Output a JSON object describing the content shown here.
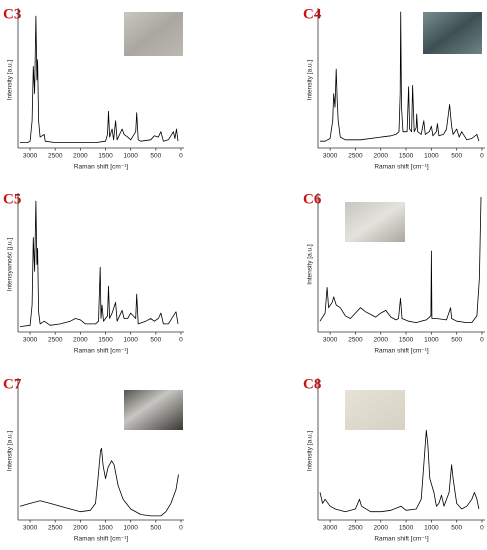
{
  "chart_data": [
    {
      "type": "line",
      "title": "C3",
      "x_label": "Raman shift [cm⁻¹]",
      "y_label": "Intensity [a.u.]",
      "color": "#000000",
      "xlim": [
        3240,
        -60
      ],
      "ylim": [
        0,
        100
      ],
      "xticks": [
        3000,
        2500,
        2000,
        1500,
        1000,
        500,
        0
      ],
      "x": [
        3200,
        3050,
        3000,
        2960,
        2935,
        2910,
        2885,
        2865,
        2850,
        2830,
        2800,
        2720,
        2700,
        2500,
        2000,
        1700,
        1500,
        1460,
        1440,
        1420,
        1370,
        1340,
        1300,
        1270,
        1170,
        1130,
        1060,
        1000,
        900,
        880,
        850,
        800,
        600,
        530,
        450,
        400,
        350,
        250,
        150,
        120,
        90,
        60
      ],
      "values": [
        4,
        4,
        5,
        20,
        60,
        40,
        97,
        50,
        65,
        20,
        8,
        10,
        5,
        4,
        4,
        4,
        5,
        10,
        27,
        8,
        14,
        6,
        20,
        6,
        14,
        10,
        8,
        6,
        12,
        26,
        6,
        5,
        6,
        9,
        8,
        12,
        5,
        6,
        12,
        7,
        14,
        5
      ]
    },
    {
      "type": "line",
      "title": "C4",
      "x_label": "Raman shift [cm⁻¹]",
      "y_label": "Intensity [a.u.]",
      "color": "#000000",
      "xlim": [
        3240,
        -60
      ],
      "ylim": [
        0,
        100
      ],
      "xticks": [
        3000,
        2500,
        2000,
        1500,
        1000,
        500,
        0
      ],
      "x": [
        3200,
        3100,
        3000,
        2950,
        2930,
        2905,
        2880,
        2860,
        2840,
        2800,
        2700,
        2400,
        2000,
        1800,
        1700,
        1640,
        1615,
        1605,
        1590,
        1560,
        1480,
        1450,
        1430,
        1390,
        1370,
        1340,
        1300,
        1290,
        1270,
        1200,
        1150,
        1120,
        1040,
        1000,
        970,
        900,
        880,
        850,
        760,
        700,
        640,
        600,
        570,
        500,
        450,
        400,
        300,
        200,
        100,
        60
      ],
      "values": [
        5,
        5,
        7,
        20,
        40,
        30,
        58,
        35,
        20,
        8,
        6,
        6,
        8,
        9,
        10,
        12,
        40,
        100,
        30,
        12,
        12,
        45,
        14,
        12,
        46,
        12,
        15,
        25,
        12,
        10,
        20,
        10,
        12,
        16,
        9,
        12,
        18,
        9,
        10,
        14,
        32,
        16,
        10,
        14,
        8,
        12,
        6,
        7,
        10,
        5
      ]
    },
    {
      "type": "line",
      "title": "C5",
      "x_label": "Raman shift [cm⁻¹]",
      "y_label": "Intensywność [j.u.]",
      "color": "#000000",
      "xlim": [
        3240,
        -60
      ],
      "ylim": [
        0,
        100
      ],
      "xticks": [
        3000,
        2500,
        2000,
        1500,
        1000,
        500,
        0
      ],
      "x": [
        3200,
        3000,
        2960,
        2935,
        2910,
        2885,
        2865,
        2850,
        2830,
        2800,
        2720,
        2600,
        2400,
        2200,
        2100,
        2000,
        1900,
        1700,
        1640,
        1605,
        1590,
        1570,
        1540,
        1460,
        1440,
        1420,
        1370,
        1300,
        1270,
        1170,
        1130,
        1060,
        1000,
        900,
        880,
        850,
        700,
        600,
        530,
        450,
        400,
        350,
        250,
        150,
        100,
        60
      ],
      "values": [
        4,
        5,
        20,
        70,
        45,
        97,
        50,
        62,
        15,
        6,
        8,
        5,
        6,
        8,
        10,
        9,
        6,
        6,
        8,
        48,
        10,
        20,
        8,
        12,
        34,
        10,
        14,
        22,
        8,
        16,
        10,
        10,
        14,
        10,
        28,
        6,
        8,
        10,
        8,
        10,
        14,
        6,
        6,
        12,
        15,
        6
      ]
    },
    {
      "type": "line",
      "title": "C6",
      "x_label": "Raman shift [cm⁻¹]",
      "y_label": "Intensity [a.u.]",
      "color": "#000000",
      "xlim": [
        3240,
        -60
      ],
      "ylim": [
        0,
        100
      ],
      "xticks": [
        3000,
        2500,
        2000,
        1500,
        1000,
        500,
        0
      ],
      "x": [
        3200,
        3100,
        3060,
        3030,
        2960,
        2930,
        2880,
        2800,
        2700,
        2600,
        2500,
        2400,
        2300,
        2200,
        2100,
        2000,
        1900,
        1800,
        1700,
        1650,
        1610,
        1580,
        1450,
        1300,
        1200,
        1100,
        1010,
        1000,
        990,
        900,
        700,
        620,
        600,
        500,
        300,
        200,
        100,
        50,
        20
      ],
      "values": [
        8,
        14,
        33,
        18,
        22,
        26,
        20,
        18,
        12,
        10,
        14,
        18,
        15,
        13,
        11,
        14,
        16,
        11,
        9,
        10,
        25,
        10,
        8,
        7,
        8,
        9,
        12,
        60,
        10,
        10,
        9,
        18,
        10,
        8,
        7,
        7,
        12,
        40,
        100
      ]
    },
    {
      "type": "line",
      "title": "C7",
      "x_label": "Raman shift [cm⁻¹]",
      "y_label": "Intensity [a.u.]",
      "color": "#000000",
      "xlim": [
        3240,
        -60
      ],
      "ylim": [
        0,
        100
      ],
      "xticks": [
        3000,
        2500,
        2000,
        1500,
        1000,
        500,
        0
      ],
      "x": [
        3200,
        3000,
        2800,
        2600,
        2400,
        2200,
        2000,
        1800,
        1700,
        1650,
        1600,
        1580,
        1550,
        1500,
        1450,
        1380,
        1330,
        1250,
        1150,
        1000,
        800,
        600,
        400,
        300,
        200,
        100,
        50
      ],
      "values": [
        10,
        12,
        14,
        12,
        10,
        8,
        6,
        7,
        12,
        30,
        50,
        52,
        40,
        30,
        38,
        43,
        40,
        25,
        15,
        8,
        4,
        3,
        3,
        6,
        12,
        22,
        33
      ]
    },
    {
      "type": "line",
      "title": "C8",
      "x_label": "Raman shift [cm⁻¹]",
      "y_label": "Intensity [a.u.]",
      "color": "#000000",
      "xlim": [
        3240,
        -60
      ],
      "ylim": [
        0,
        100
      ],
      "xticks": [
        3000,
        2500,
        2000,
        1500,
        1000,
        500,
        0
      ],
      "x": [
        3200,
        3150,
        3100,
        3000,
        2900,
        2700,
        2500,
        2420,
        2380,
        2200,
        2000,
        1800,
        1600,
        1500,
        1300,
        1200,
        1150,
        1100,
        1070,
        1030,
        950,
        900,
        850,
        800,
        750,
        650,
        600,
        570,
        500,
        400,
        300,
        200,
        150,
        100,
        60
      ],
      "values": [
        20,
        12,
        15,
        10,
        8,
        6,
        8,
        15,
        10,
        6,
        6,
        7,
        10,
        7,
        8,
        15,
        40,
        65,
        55,
        30,
        20,
        10,
        12,
        18,
        10,
        20,
        40,
        30,
        12,
        8,
        10,
        15,
        20,
        15,
        8
      ]
    }
  ]
}
